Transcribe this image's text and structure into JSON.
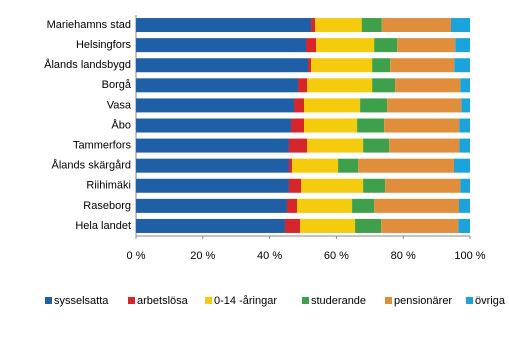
{
  "chart_data": {
    "type": "stacked-barh",
    "categories": [
      "Mariehamns stad",
      "Helsingfors",
      "Ålands landsbygd",
      "Borgå",
      "Vasa",
      "Åbo",
      "Tammerfors",
      "Ålands skärgård",
      "Riihimäki",
      "Raseborg",
      "Hela landet"
    ],
    "series": [
      {
        "name": "sysselsatta",
        "color": "#1f5fa6",
        "values": [
          52.4,
          50.9,
          51.5,
          48.5,
          47.3,
          46.4,
          45.8,
          45.8,
          45.8,
          45.2,
          44.6
        ]
      },
      {
        "name": "arbetslösa",
        "color": "#d7262b",
        "values": [
          1.2,
          3.0,
          0.9,
          2.7,
          3.0,
          3.9,
          5.4,
          0.9,
          3.6,
          3.0,
          4.5
        ]
      },
      {
        "name": "0-14 -åringar",
        "color": "#f5cb0e",
        "values": [
          14.0,
          17.4,
          18.3,
          19.5,
          16.8,
          15.9,
          16.8,
          13.8,
          18.6,
          16.5,
          16.5
        ]
      },
      {
        "name": "studerande",
        "color": "#3ea04a",
        "values": [
          6.0,
          6.9,
          5.4,
          6.9,
          8.1,
          8.1,
          7.8,
          6.0,
          6.6,
          6.6,
          7.8
        ]
      },
      {
        "name": "pensionärer",
        "color": "#e08d3c",
        "values": [
          20.7,
          17.4,
          19.2,
          19.5,
          22.2,
          22.5,
          21.0,
          28.7,
          22.5,
          25.4,
          23.1
        ]
      },
      {
        "name": "övriga",
        "color": "#1ba3dc",
        "values": [
          5.7,
          4.4,
          4.7,
          2.9,
          2.6,
          3.2,
          3.2,
          4.8,
          2.9,
          3.3,
          3.5
        ]
      }
    ],
    "xlim": [
      0,
      100
    ],
    "xticks": [
      {
        "value": 0,
        "label": "0 %"
      },
      {
        "value": 20,
        "label": "20 %"
      },
      {
        "value": 40,
        "label": "40 %"
      },
      {
        "value": 60,
        "label": "60 %"
      },
      {
        "value": 80,
        "label": "80 %"
      },
      {
        "value": 100,
        "label": "100 %"
      }
    ],
    "legend": "bottom"
  }
}
